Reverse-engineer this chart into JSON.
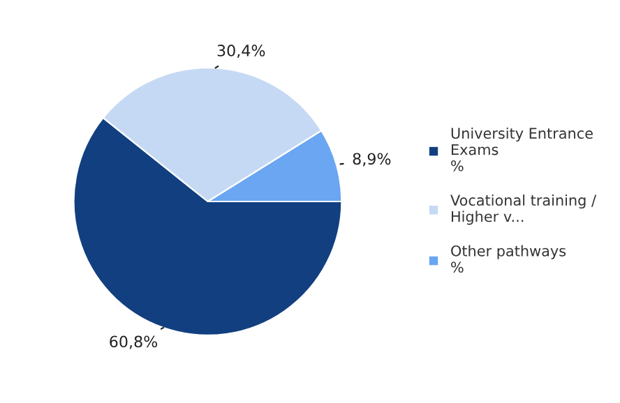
{
  "chart_data": {
    "type": "pie",
    "categories": [
      "University Entrance\nExams\n%",
      "Vocational training /\nHigher v...",
      "Other pathways\n%"
    ],
    "values": [
      60.8,
      30.4,
      8.9
    ],
    "value_labels": [
      "60,8%",
      "30,4%",
      "8,9%"
    ],
    "colors": [
      "#123f80",
      "#c6d9f4",
      "#6aa6f2"
    ],
    "legend": "right"
  }
}
